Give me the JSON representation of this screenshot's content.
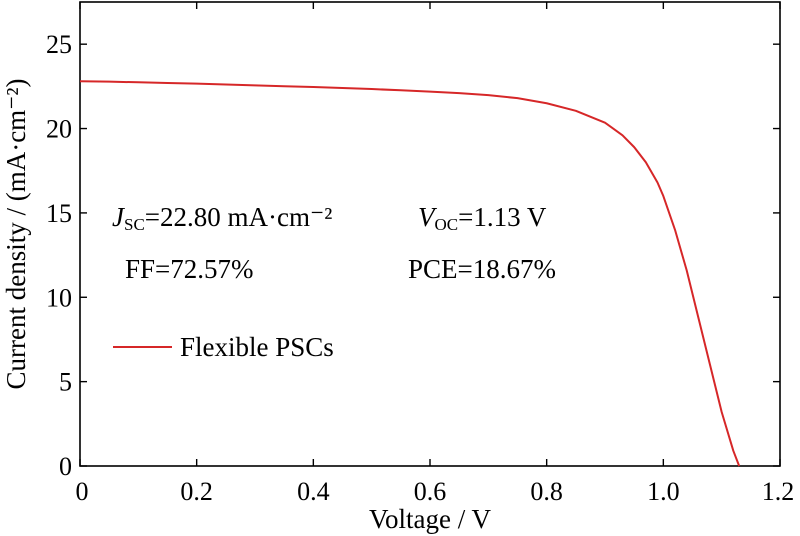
{
  "chart_data": {
    "type": "line",
    "xlabel": "Voltage / V",
    "ylabel": "Current density / (mA·cm⁻²)",
    "xlim": [
      0,
      1.2
    ],
    "ylim": [
      0,
      27.5
    ],
    "xticks": [
      0,
      0.2,
      0.4,
      0.6,
      0.8,
      1.0,
      1.2
    ],
    "xtick_labels": [
      "0",
      "0.2",
      "0.4",
      "0.6",
      "0.8",
      "1.0",
      "1.2"
    ],
    "yticks": [
      0,
      5,
      10,
      15,
      20,
      25
    ],
    "ytick_labels": [
      "0",
      "5",
      "10",
      "15",
      "20",
      "25"
    ],
    "grid": false,
    "legend_position": "left",
    "series": [
      {
        "name": "Flexible PSCs",
        "color": "#d62728",
        "x": [
          0,
          0.05,
          0.1,
          0.15,
          0.2,
          0.25,
          0.3,
          0.35,
          0.4,
          0.45,
          0.5,
          0.55,
          0.6,
          0.65,
          0.7,
          0.75,
          0.8,
          0.85,
          0.9,
          0.93,
          0.95,
          0.97,
          0.99,
          1.0,
          1.02,
          1.04,
          1.06,
          1.08,
          1.1,
          1.12,
          1.13
        ],
        "y": [
          22.8,
          22.78,
          22.74,
          22.7,
          22.66,
          22.61,
          22.56,
          22.51,
          22.46,
          22.4,
          22.34,
          22.27,
          22.19,
          22.1,
          21.98,
          21.8,
          21.5,
          21.05,
          20.35,
          19.6,
          18.9,
          18.0,
          16.8,
          16.0,
          14.0,
          11.6,
          8.8,
          6.0,
          3.2,
          0.9,
          0
        ]
      }
    ],
    "annotations": {
      "jsc_symbol": "J",
      "jsc_sub": "SC",
      "jsc_value": "=22.80 mA·cm⁻²",
      "voc_symbol": "V",
      "voc_sub": "OC",
      "voc_value": "=1.13 V",
      "ff": "FF=72.57%",
      "pce": "PCE=18.67%"
    }
  }
}
